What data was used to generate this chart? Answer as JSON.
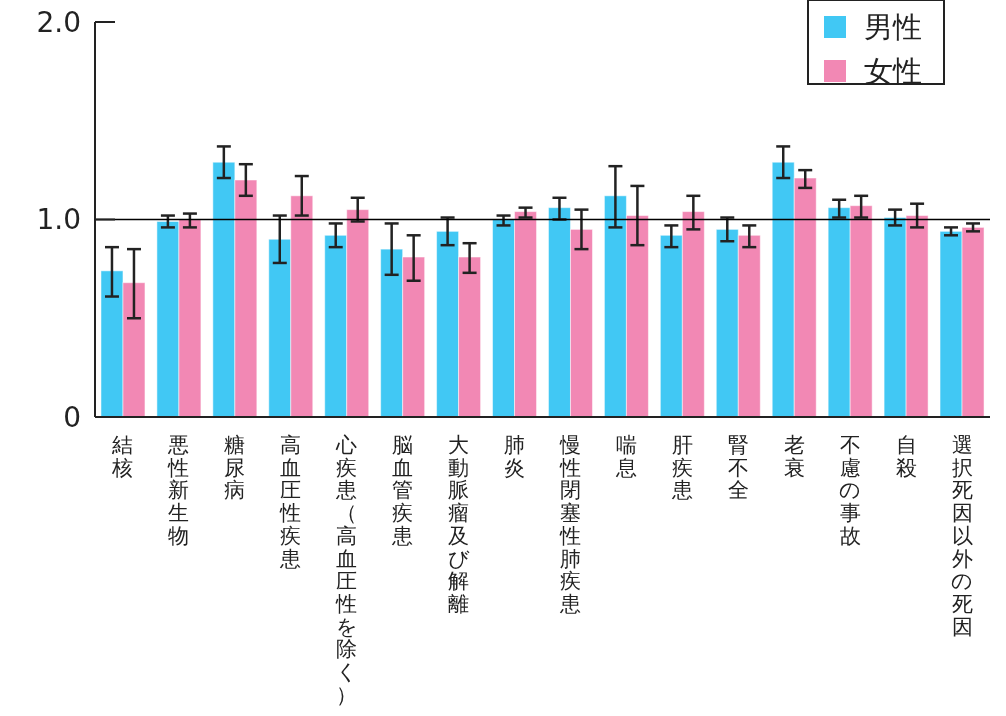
{
  "chart_data": {
    "type": "bar",
    "categories": [
      "結核",
      "悪性新生物",
      "糖尿病",
      "高血圧性疾患",
      "心疾患（高血圧性を除く）",
      "脳血管疾患",
      "大動脈瘤及び解離",
      "肺炎",
      "慢性閉塞性肺疾患",
      "喘息",
      "肝疾患",
      "腎不全",
      "老衰",
      "不慮の事故",
      "自殺",
      "選択死因以外の死因"
    ],
    "series": [
      {
        "name": "男性",
        "color": "#41c8f4",
        "values": [
          0.74,
          0.99,
          1.29,
          0.9,
          0.92,
          0.85,
          0.94,
          1.0,
          1.06,
          1.12,
          0.92,
          0.95,
          1.29,
          1.06,
          1.01,
          0.94
        ],
        "errors": [
          [
            0.61,
            0.86
          ],
          [
            0.96,
            1.02
          ],
          [
            1.21,
            1.37
          ],
          [
            0.78,
            1.02
          ],
          [
            0.86,
            0.98
          ],
          [
            0.72,
            0.98
          ],
          [
            0.87,
            1.01
          ],
          [
            0.97,
            1.02
          ],
          [
            1.0,
            1.11
          ],
          [
            0.96,
            1.27
          ],
          [
            0.86,
            0.97
          ],
          [
            0.89,
            1.01
          ],
          [
            1.21,
            1.37
          ],
          [
            1.01,
            1.1
          ],
          [
            0.97,
            1.05
          ],
          [
            0.92,
            0.96
          ]
        ]
      },
      {
        "name": "女性",
        "color": "#f288b4",
        "values": [
          0.68,
          1.0,
          1.2,
          1.12,
          1.05,
          0.81,
          0.81,
          1.04,
          0.95,
          1.02,
          1.04,
          0.92,
          1.21,
          1.07,
          1.02,
          0.96
        ],
        "errors": [
          [
            0.5,
            0.85
          ],
          [
            0.96,
            1.03
          ],
          [
            1.12,
            1.28
          ],
          [
            1.02,
            1.22
          ],
          [
            0.99,
            1.11
          ],
          [
            0.69,
            0.92
          ],
          [
            0.73,
            0.88
          ],
          [
            1.01,
            1.06
          ],
          [
            0.85,
            1.05
          ],
          [
            0.87,
            1.17
          ],
          [
            0.95,
            1.12
          ],
          [
            0.86,
            0.97
          ],
          [
            1.16,
            1.25
          ],
          [
            1.01,
            1.12
          ],
          [
            0.96,
            1.08
          ],
          [
            0.94,
            0.98
          ]
        ]
      }
    ],
    "ylim": [
      0,
      2
    ],
    "yticks": [
      0,
      {
        "value": 1,
        "label": "1.0"
      },
      {
        "value": 2,
        "label": "2.0"
      }
    ],
    "ref_lines": [
      {
        "axis": "y",
        "value": 1,
        "color": "#000000"
      }
    ],
    "legend": "top right",
    "grid": false
  }
}
